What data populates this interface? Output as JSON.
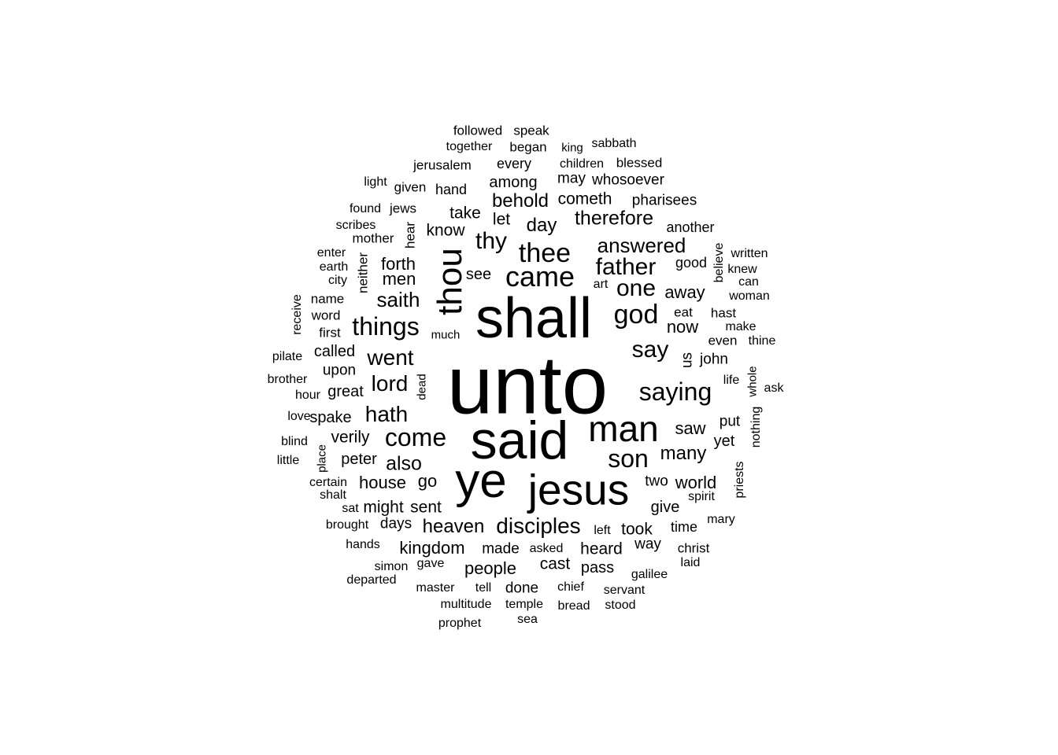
{
  "cloud": {
    "text_color": "#000000",
    "background": "#ffffff",
    "words": [
      {
        "text": "unto"
      },
      {
        "text": "shall"
      },
      {
        "text": "said"
      },
      {
        "text": "ye"
      },
      {
        "text": "jesus"
      },
      {
        "text": "thou"
      },
      {
        "text": "man"
      },
      {
        "text": "came"
      },
      {
        "text": "thee"
      },
      {
        "text": "saying"
      },
      {
        "text": "come"
      },
      {
        "text": "son"
      },
      {
        "text": "god"
      },
      {
        "text": "father"
      },
      {
        "text": "one"
      },
      {
        "text": "things"
      },
      {
        "text": "say"
      },
      {
        "text": "disciples"
      },
      {
        "text": "answered"
      },
      {
        "text": "thy"
      },
      {
        "text": "therefore"
      },
      {
        "text": "hath"
      },
      {
        "text": "went"
      },
      {
        "text": "lord"
      },
      {
        "text": "saith"
      },
      {
        "text": "behold"
      },
      {
        "text": "also"
      },
      {
        "text": "heaven"
      },
      {
        "text": "many"
      },
      {
        "text": "kingdom"
      },
      {
        "text": "day"
      },
      {
        "text": "men"
      },
      {
        "text": "people"
      },
      {
        "text": "house"
      },
      {
        "text": "world"
      },
      {
        "text": "saw"
      },
      {
        "text": "now"
      },
      {
        "text": "forth"
      },
      {
        "text": "away"
      },
      {
        "text": "know"
      },
      {
        "text": "cometh"
      },
      {
        "text": "among"
      },
      {
        "text": "heard"
      },
      {
        "text": "took"
      },
      {
        "text": "go"
      },
      {
        "text": "cast"
      },
      {
        "text": "give"
      },
      {
        "text": "see"
      },
      {
        "text": "take"
      },
      {
        "text": "let"
      },
      {
        "text": "pharisees"
      },
      {
        "text": "might"
      },
      {
        "text": "sent"
      },
      {
        "text": "days"
      },
      {
        "text": "made"
      },
      {
        "text": "done"
      },
      {
        "text": "pass"
      },
      {
        "text": "two"
      },
      {
        "text": "time"
      },
      {
        "text": "way"
      },
      {
        "text": "another"
      },
      {
        "text": "good"
      },
      {
        "text": "john"
      },
      {
        "text": "yet"
      },
      {
        "text": "put"
      },
      {
        "text": "us"
      },
      {
        "text": "verily"
      },
      {
        "text": "peter"
      },
      {
        "text": "great"
      },
      {
        "text": "upon"
      },
      {
        "text": "called"
      },
      {
        "text": "spake"
      },
      {
        "text": "may"
      },
      {
        "text": "whosoever"
      },
      {
        "text": "every"
      },
      {
        "text": "jerusalem"
      },
      {
        "text": "hand"
      },
      {
        "text": "given"
      },
      {
        "text": "jews"
      },
      {
        "text": "followed"
      },
      {
        "text": "speak"
      },
      {
        "text": "together"
      },
      {
        "text": "began"
      },
      {
        "text": "king"
      },
      {
        "text": "sabbath"
      },
      {
        "text": "children"
      },
      {
        "text": "blessed"
      },
      {
        "text": "light"
      },
      {
        "text": "found"
      },
      {
        "text": "scribes"
      },
      {
        "text": "mother"
      },
      {
        "text": "hear"
      },
      {
        "text": "enter"
      },
      {
        "text": "earth"
      },
      {
        "text": "city"
      },
      {
        "text": "neither"
      },
      {
        "text": "name"
      },
      {
        "text": "word"
      },
      {
        "text": "first"
      },
      {
        "text": "receive"
      },
      {
        "text": "pilate"
      },
      {
        "text": "brother"
      },
      {
        "text": "hour"
      },
      {
        "text": "love"
      },
      {
        "text": "blind"
      },
      {
        "text": "little"
      },
      {
        "text": "place"
      },
      {
        "text": "certain"
      },
      {
        "text": "shalt"
      },
      {
        "text": "sat"
      },
      {
        "text": "brought"
      },
      {
        "text": "hands"
      },
      {
        "text": "simon"
      },
      {
        "text": "departed"
      },
      {
        "text": "master"
      },
      {
        "text": "multitude"
      },
      {
        "text": "prophet"
      },
      {
        "text": "gave"
      },
      {
        "text": "tell"
      },
      {
        "text": "temple"
      },
      {
        "text": "sea"
      },
      {
        "text": "asked"
      },
      {
        "text": "chief"
      },
      {
        "text": "bread"
      },
      {
        "text": "servant"
      },
      {
        "text": "stood"
      },
      {
        "text": "galilee"
      },
      {
        "text": "laid"
      },
      {
        "text": "christ"
      },
      {
        "text": "mary"
      },
      {
        "text": "spirit"
      },
      {
        "text": "left"
      },
      {
        "text": "art"
      },
      {
        "text": "eat"
      },
      {
        "text": "hast"
      },
      {
        "text": "even"
      },
      {
        "text": "make"
      },
      {
        "text": "thine"
      },
      {
        "text": "life"
      },
      {
        "text": "whole"
      },
      {
        "text": "ask"
      },
      {
        "text": "nothing"
      },
      {
        "text": "priests"
      },
      {
        "text": "believe"
      },
      {
        "text": "written"
      },
      {
        "text": "knew"
      },
      {
        "text": "can"
      },
      {
        "text": "woman"
      },
      {
        "text": "much"
      },
      {
        "text": "dead"
      }
    ]
  }
}
